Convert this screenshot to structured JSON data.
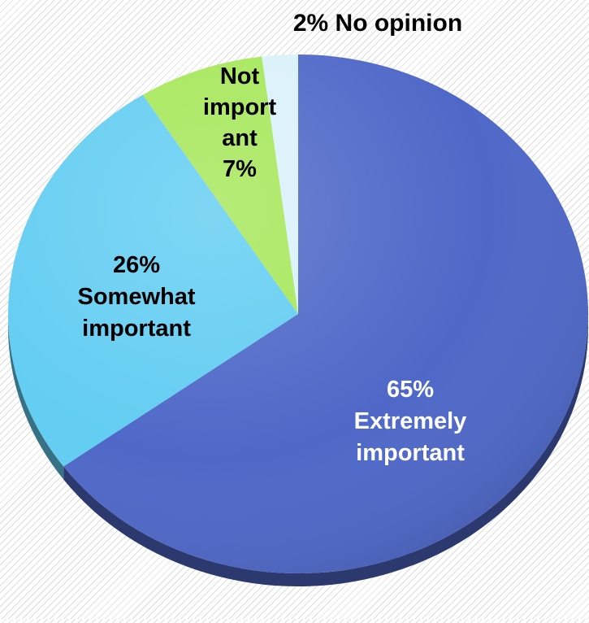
{
  "chart_data": {
    "type": "pie",
    "slices": [
      {
        "value": 65,
        "label_lines": [
          "65%",
          "Extremely",
          "important"
        ],
        "color": "#4f68c8",
        "text_color": "#ffffff"
      },
      {
        "value": 26,
        "label_lines": [
          "26%",
          "Somewhat",
          "important"
        ],
        "color": "#63cdf2",
        "text_color": "#000000"
      },
      {
        "value": 7,
        "label_lines": [
          "Not",
          "import",
          "ant",
          "7%"
        ],
        "color": "#a6e75a",
        "text_color": "#000000"
      },
      {
        "value": 2,
        "label_lines": [
          "2%  No opinion"
        ],
        "color": "#daf1fb",
        "text_color": "#000000"
      }
    ],
    "start_angle_deg": 0,
    "direction": "clockwise",
    "style": "3d-tilted",
    "legend": "none"
  }
}
